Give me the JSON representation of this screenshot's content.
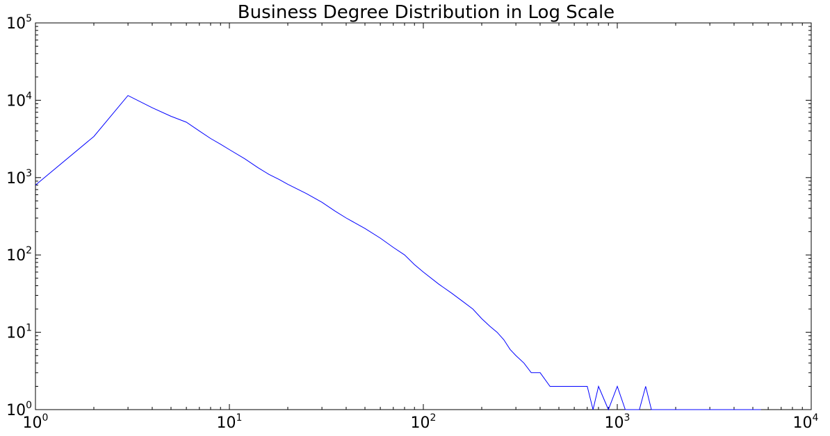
{
  "chart_data": {
    "type": "line",
    "title": "Business Degree Distribution in Log Scale",
    "xlabel": "",
    "ylabel": "",
    "x_scale": "log",
    "y_scale": "log",
    "xlim": [
      1,
      10000
    ],
    "ylim": [
      1,
      100000
    ],
    "grid": false,
    "legend": "none",
    "x_ticks": [
      {
        "base": "10",
        "exp": "0"
      },
      {
        "base": "10",
        "exp": "1"
      },
      {
        "base": "10",
        "exp": "2"
      },
      {
        "base": "10",
        "exp": "3"
      },
      {
        "base": "10",
        "exp": "4"
      }
    ],
    "y_ticks": [
      {
        "base": "10",
        "exp": "0"
      },
      {
        "base": "10",
        "exp": "1"
      },
      {
        "base": "10",
        "exp": "2"
      },
      {
        "base": "10",
        "exp": "3"
      },
      {
        "base": "10",
        "exp": "4"
      },
      {
        "base": "10",
        "exp": "5"
      }
    ],
    "line_color": "#0000ff",
    "series": [
      {
        "x": [
          1,
          2,
          3,
          4,
          5,
          6,
          7,
          8,
          9,
          10,
          12,
          14,
          16,
          18,
          20,
          25,
          30,
          35,
          40,
          45,
          50,
          60,
          70,
          80,
          90,
          100,
          120,
          140,
          160,
          180,
          200,
          220,
          240,
          260,
          280,
          300,
          330,
          360,
          400,
          450,
          500,
          550,
          600,
          650,
          700,
          750,
          800,
          900,
          1000,
          1100,
          1200,
          1300,
          1400,
          1500,
          2000,
          3000,
          4000,
          5500
        ],
        "y": [
          800,
          3400,
          11500,
          8000,
          6200,
          5200,
          4000,
          3200,
          2700,
          2300,
          1750,
          1350,
          1100,
          950,
          820,
          620,
          480,
          370,
          300,
          255,
          220,
          165,
          125,
          100,
          75,
          60,
          42,
          32,
          25,
          20,
          15,
          12,
          10,
          8,
          6,
          5,
          4,
          3,
          3,
          2,
          2,
          2,
          2,
          2,
          2,
          1,
          2,
          1,
          2,
          1,
          1,
          1,
          2,
          1,
          1,
          1,
          1,
          1
        ]
      }
    ]
  }
}
